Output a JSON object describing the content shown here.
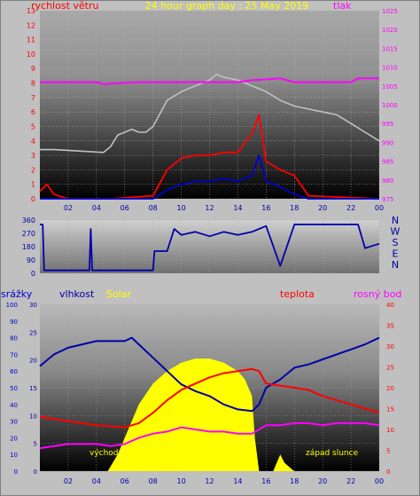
{
  "header": {
    "title": "24 hour graph day : 25 May 2019",
    "wind_label": "rychlost větru",
    "pressure_label": "tlak"
  },
  "bottom_header": {
    "rain_label": "srážky",
    "humidity_label": "vlhkost",
    "solar_label": "Solar",
    "temp_label": "teplota",
    "dew_label": "rosný bod"
  },
  "annotations": {
    "sunrise": "východ slunce",
    "sunset": "západ slunce"
  },
  "compass": [
    "N",
    "W",
    "S",
    "E",
    "N"
  ],
  "x_ticks": [
    "02",
    "04",
    "06",
    "08",
    "10",
    "12",
    "14",
    "16",
    "18",
    "20",
    "22",
    "00"
  ],
  "colors": {
    "wind_avg": "#0000cc",
    "wind_gust": "#ff0000",
    "pressure": "#ff00ff",
    "direction": "#0000aa",
    "solar": "#ffff00",
    "humidity": "#0000aa",
    "temperature": "#ff0000",
    "dewpoint": "#ff00ff",
    "gust_max": "#c0c0c0"
  },
  "chart_data": [
    {
      "type": "line",
      "title": "24 hour graph day : 25 May 2019",
      "x_ticks": [
        "02",
        "04",
        "06",
        "08",
        "10",
        "12",
        "14",
        "16",
        "18",
        "20",
        "22",
        "00"
      ],
      "y_left": {
        "label": "rychlost větru",
        "ylim": [
          0,
          13
        ],
        "ticks": [
          0,
          1,
          2,
          3,
          4,
          5,
          6,
          7,
          8,
          9,
          10,
          11,
          12,
          13
        ]
      },
      "y_right": {
        "label": "tlak",
        "ylim": [
          975,
          1025
        ],
        "ticks": [
          975,
          980,
          985,
          990,
          995,
          1000,
          1005,
          1010,
          1015,
          1020,
          1025
        ]
      },
      "series": [
        {
          "name": "tlak",
          "axis": "right",
          "x": [
            0,
            4,
            4.5,
            7,
            8,
            14,
            15,
            17,
            18,
            22,
            22.5,
            24
          ],
          "y": [
            1006,
            1006,
            1005.5,
            1006,
            1006,
            1006,
            1006.5,
            1007,
            1006,
            1006,
            1007,
            1007
          ]
        },
        {
          "name": "",
          "axis": "left",
          "x": [
            0,
            1,
            4.5,
            5,
            5.5,
            6.5,
            7,
            7.5,
            8,
            9,
            10,
            11,
            12,
            12.5,
            13,
            14,
            15,
            16,
            17,
            18,
            19,
            20,
            21,
            22,
            23,
            24
          ],
          "y": [
            3.4,
            3.4,
            3.2,
            3.6,
            4.4,
            4.8,
            4.6,
            4.6,
            5,
            6.8,
            7.4,
            7.8,
            8.2,
            8.6,
            8.4,
            8.2,
            7.8,
            7.4,
            6.8,
            6.4,
            6.2,
            6,
            5.8,
            5.2,
            4.6,
            4
          ]
        },
        {
          "name": "",
          "axis": "left",
          "x": [
            0,
            0.5,
            1,
            2,
            3,
            5,
            8,
            9,
            10,
            11,
            12,
            13,
            14,
            15,
            15.5,
            16,
            17,
            18,
            19,
            24
          ],
          "y": [
            0.5,
            1,
            0.3,
            0,
            0,
            0,
            0.2,
            2,
            2.8,
            3,
            3,
            3.2,
            3.2,
            4.5,
            5.8,
            2.6,
            2,
            1.6,
            0.2,
            0
          ]
        },
        {
          "name": "",
          "axis": "left",
          "x": [
            0,
            8,
            9,
            10,
            11,
            12,
            13,
            14,
            15,
            15.5,
            16,
            17,
            18,
            19,
            24
          ],
          "y": [
            0,
            0,
            0.6,
            1,
            1.2,
            1.2,
            1.4,
            1.2,
            1.6,
            3,
            1.2,
            0.8,
            0.3,
            0,
            0
          ]
        }
      ]
    },
    {
      "type": "line",
      "x_ticks": [
        "02",
        "04",
        "06",
        "08",
        "10",
        "12",
        "14",
        "16",
        "18",
        "20",
        "22",
        "00"
      ],
      "ylim": [
        0,
        360
      ],
      "y_ticks": [
        0,
        90,
        180,
        270,
        360
      ],
      "right_labels": [
        "N",
        "W",
        "S",
        "E",
        "N"
      ],
      "series": [
        {
          "name": "",
          "x": [
            0,
            0.2,
            0.3,
            3.5,
            3.6,
            3.7,
            8,
            8.1,
            9,
            9.5,
            10,
            11,
            12,
            13,
            14,
            15,
            15.5,
            16,
            17,
            18,
            19,
            22.5,
            23,
            24
          ],
          "y": [
            330,
            330,
            20,
            20,
            300,
            20,
            20,
            150,
            150,
            300,
            260,
            280,
            250,
            280,
            260,
            280,
            300,
            320,
            50,
            330,
            330,
            330,
            170,
            200
          ]
        }
      ]
    },
    {
      "type": "line",
      "x_ticks": [
        "02",
        "04",
        "06",
        "08",
        "10",
        "12",
        "14",
        "16",
        "18",
        "20",
        "22",
        "00"
      ],
      "y_axes": [
        {
          "label": "srážky",
          "ylim": [
            0,
            100
          ],
          "ticks": [
            0,
            10,
            20,
            30,
            40,
            50,
            60,
            70,
            80,
            90,
            100
          ]
        },
        {
          "label": "vlhkost",
          "ylim": [
            0,
            30
          ],
          "ticks": [
            0,
            5,
            10,
            15,
            20,
            25,
            30
          ]
        },
        {
          "label": "teplota",
          "ylim": [
            0,
            40
          ],
          "ticks": [
            0,
            5,
            10,
            15,
            20,
            25,
            30,
            35,
            40
          ]
        }
      ],
      "series": [
        {
          "name": "vlhkost",
          "x": [
            0,
            1,
            2,
            3,
            4,
            5,
            6,
            6.5,
            7,
            8,
            9,
            10,
            11,
            12,
            13,
            14,
            15,
            15.5,
            16,
            17,
            18,
            19,
            20,
            21,
            22,
            23,
            24
          ],
          "y": [
            63,
            70,
            74,
            76,
            78,
            78,
            78,
            80,
            76,
            68,
            60,
            52,
            48,
            45,
            40,
            37,
            36,
            40,
            50,
            55,
            62,
            64,
            67,
            70,
            73,
            76,
            80
          ]
        },
        {
          "name": "teplota",
          "x": [
            0,
            2,
            4,
            6,
            7,
            8,
            9,
            10,
            11,
            12,
            13,
            14,
            15,
            15.5,
            16,
            17,
            18,
            19,
            20,
            21,
            22,
            23,
            24
          ],
          "y": [
            13,
            12,
            11,
            10.5,
            11.5,
            14,
            17,
            19.5,
            21,
            22.5,
            23.5,
            24,
            24.5,
            24,
            21,
            20.5,
            20,
            19.5,
            18,
            17,
            16,
            15,
            14
          ]
        },
        {
          "name": "rosný bod",
          "x": [
            0,
            2,
            4,
            5,
            6,
            7,
            8,
            9,
            10,
            11,
            12,
            13,
            14,
            15,
            16,
            17,
            18,
            19,
            20,
            21,
            22,
            23,
            24
          ],
          "y": [
            5.5,
            6.5,
            6.5,
            6,
            6.5,
            8,
            9,
            9.5,
            10.5,
            10,
            9.5,
            9.5,
            9,
            9,
            11,
            11,
            11.5,
            11.5,
            11,
            11.5,
            11.5,
            11.5,
            11
          ]
        },
        {
          "name": "Solar",
          "x": [
            4.8,
            5.5,
            6,
            7,
            8,
            9,
            10,
            11,
            11.5,
            12,
            13,
            14,
            14.5,
            15,
            15.2,
            15.5,
            16.5,
            17,
            17.3,
            17.8,
            18
          ],
          "y": [
            0,
            4,
            8,
            16,
            21,
            24,
            26,
            27,
            27,
            27,
            26,
            24,
            22,
            18,
            8,
            0,
            0,
            4,
            2,
            0.5,
            0
          ]
        }
      ]
    }
  ]
}
